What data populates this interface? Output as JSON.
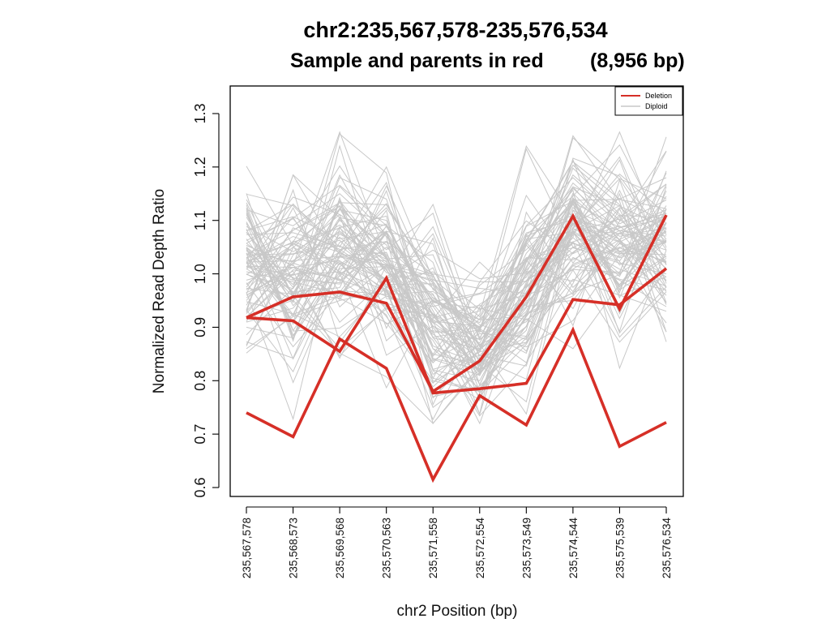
{
  "chart_data": {
    "type": "line",
    "title": "chr2:235,567,578-235,576,534",
    "subtitle_left": "Sample and parents in red",
    "subtitle_right": "(8,956 bp)",
    "xlabel": "chr2 Position (bp)",
    "ylabel": "Normalized Read Depth Ratio",
    "categories": [
      "235,567,578",
      "235,568,573",
      "235,569,568",
      "235,570,563",
      "235,571,558",
      "235,572,554",
      "235,573,549",
      "235,574,544",
      "235,575,539",
      "235,576,534"
    ],
    "ylim": [
      0.585,
      1.35
    ],
    "yticks": [
      "0.6",
      "0.7",
      "0.8",
      "0.9",
      "1.0",
      "1.1",
      "1.2",
      "1.3"
    ],
    "grid": false,
    "legend_position": "top-right",
    "legend": [
      {
        "label": "Deletion",
        "color": "#d62f27"
      },
      {
        "label": "Diploid",
        "color": "#c8c8c8"
      }
    ],
    "highlight_series": [
      {
        "values": [
          0.918,
          0.957,
          0.966,
          0.945,
          0.78,
          0.837,
          0.957,
          1.108,
          0.934,
          1.11
        ]
      },
      {
        "values": [
          0.918,
          0.912,
          0.855,
          0.992,
          0.777,
          0.785,
          0.795,
          0.952,
          0.942,
          1.01
        ]
      },
      {
        "values": [
          0.74,
          0.695,
          0.878,
          0.823,
          0.615,
          0.772,
          0.717,
          0.895,
          0.677,
          0.722
        ]
      }
    ],
    "background_series": {
      "count": 90,
      "color": "#c8c8c8",
      "lines": [
        [
          0.93,
          1.02,
          1.08,
          1.01,
          0.82,
          0.8,
          0.96,
          1.05,
          1.02,
          1.0
        ],
        [
          1.05,
          0.98,
          1.12,
          1.1,
          0.91,
          0.84,
          1.01,
          1.16,
          1.08,
          1.12
        ],
        [
          0.86,
          0.92,
          0.95,
          0.97,
          0.77,
          0.79,
          0.88,
          0.99,
          0.96,
          0.93
        ],
        [
          1.12,
          1.09,
          1.15,
          1.07,
          0.95,
          0.9,
          1.06,
          1.21,
          1.14,
          1.18
        ],
        [
          0.98,
          1.05,
          1.0,
          1.04,
          0.86,
          0.82,
          1.0,
          1.08,
          1.03,
          1.06
        ],
        [
          1.0,
          0.95,
          1.18,
          1.14,
          0.88,
          0.86,
          1.07,
          1.11,
          1.06,
          1.02
        ],
        [
          0.9,
          0.88,
          1.02,
          0.92,
          0.8,
          0.78,
          0.92,
          1.03,
          0.99,
          0.97
        ],
        [
          1.08,
          1.13,
          1.05,
          1.2,
          0.99,
          0.92,
          1.09,
          1.18,
          1.1,
          1.23
        ],
        [
          0.96,
          1.0,
          1.1,
          1.03,
          0.84,
          0.81,
          0.98,
          1.13,
          1.04,
          1.08
        ],
        [
          1.02,
          1.07,
          1.04,
          0.99,
          1.13,
          0.88,
          1.03,
          1.06,
          1.09,
          1.01
        ]
      ]
    }
  }
}
